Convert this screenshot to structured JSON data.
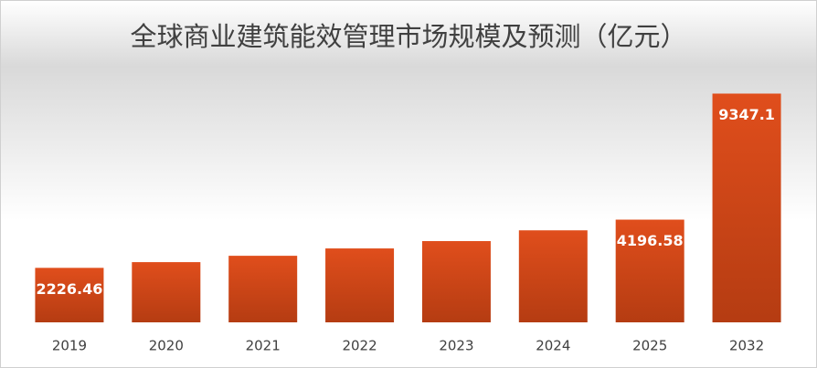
{
  "chart_data": {
    "type": "bar",
    "title": "全球商业建筑能效管理市场规模及预测（亿元）",
    "categories": [
      "2019",
      "2020",
      "2021",
      "2022",
      "2023",
      "2024",
      "2025",
      "2032"
    ],
    "values": [
      2226.46,
      2460,
      2720,
      3020,
      3320,
      3760,
      4196.58,
      9347.1
    ],
    "value_labels": [
      "2226.46",
      null,
      null,
      null,
      null,
      null,
      "4196.58",
      "9347.1"
    ],
    "color": "#d9481a",
    "ylim": [
      0,
      10000
    ]
  }
}
